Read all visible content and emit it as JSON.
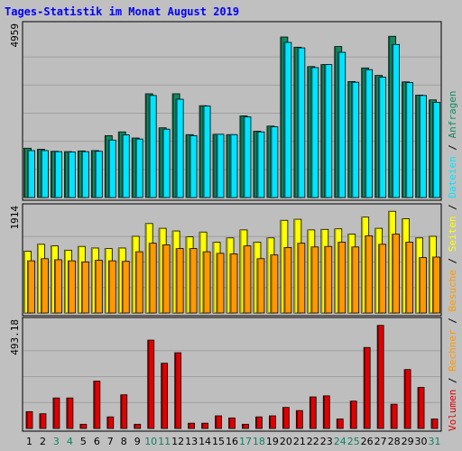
{
  "title": "Tages-Statistik im Monat August 2019",
  "colors": {
    "background": "#c0c0c0",
    "panel": "#bebebe",
    "anfragen": "#138a60",
    "dateien": "#00e5ff",
    "seiten": "#ffff00",
    "besuche": "#ff9900",
    "volumen": "#e00000",
    "title": "#0000ff",
    "weekend_day": "#108060"
  },
  "chart_data": [
    {
      "type": "bar",
      "title": "Tages-Statistik im Monat August 2019",
      "panel": "Anfragen / Dateien",
      "y_scale_label": "4959",
      "ylim": [
        0,
        4959
      ],
      "categories": [
        "1",
        "2",
        "3",
        "4",
        "5",
        "6",
        "7",
        "8",
        "9",
        "10",
        "11",
        "12",
        "13",
        "14",
        "15",
        "16",
        "17",
        "18",
        "19",
        "20",
        "21",
        "22",
        "23",
        "24",
        "25",
        "26",
        "27",
        "28",
        "29",
        "30",
        "31"
      ],
      "weekend_days": [
        "3",
        "4",
        "10",
        "11",
        "17",
        "18",
        "24",
        "25",
        "31"
      ],
      "series": [
        {
          "name": "Anfragen",
          "legend": "Anfragen",
          "color": "#138a60",
          "values": [
            1450,
            1420,
            1360,
            1350,
            1370,
            1380,
            1820,
            1930,
            1750,
            3050,
            2050,
            3050,
            1850,
            2700,
            1860,
            1850,
            2400,
            1950,
            2100,
            4720,
            4420,
            3850,
            3910,
            4440,
            3410,
            3810,
            3590,
            4740,
            3400,
            3010,
            2870
          ]
        },
        {
          "name": "Dateien",
          "legend": "Dateien",
          "color": "#00e5ff",
          "values": [
            1380,
            1380,
            1350,
            1340,
            1350,
            1360,
            1690,
            1840,
            1720,
            3000,
            2010,
            2890,
            1820,
            2690,
            1860,
            1850,
            2370,
            1930,
            2080,
            4560,
            4400,
            3820,
            3910,
            4270,
            3390,
            3760,
            3540,
            4500,
            3380,
            3000,
            2800
          ]
        }
      ]
    },
    {
      "type": "bar",
      "panel": "Seiten / Besuche",
      "y_scale_label": "1914",
      "ylim": [
        0,
        1914
      ],
      "categories": [
        "1",
        "2",
        "3",
        "4",
        "5",
        "6",
        "7",
        "8",
        "9",
        "10",
        "11",
        "12",
        "13",
        "14",
        "15",
        "16",
        "17",
        "18",
        "19",
        "20",
        "21",
        "22",
        "23",
        "24",
        "25",
        "26",
        "27",
        "28",
        "29",
        "30",
        "31"
      ],
      "series": [
        {
          "name": "Seiten",
          "legend": "Seiten",
          "color": "#ffff00",
          "values": [
            1160,
            1290,
            1260,
            1180,
            1250,
            1220,
            1210,
            1220,
            1440,
            1680,
            1590,
            1540,
            1430,
            1520,
            1330,
            1410,
            1560,
            1330,
            1410,
            1740,
            1760,
            1560,
            1570,
            1580,
            1480,
            1800,
            1590,
            1910,
            1770,
            1410,
            1440
          ]
        },
        {
          "name": "Besuche",
          "legend": "Besuche",
          "color": "#ff9900",
          "values": [
            980,
            1020,
            1000,
            980,
            960,
            990,
            980,
            970,
            1150,
            1310,
            1280,
            1210,
            1210,
            1150,
            1120,
            1110,
            1260,
            1020,
            1090,
            1230,
            1310,
            1240,
            1250,
            1330,
            1240,
            1450,
            1290,
            1480,
            1330,
            1040,
            1050
          ]
        }
      ]
    },
    {
      "type": "bar",
      "panel": "Volumen / Rechner",
      "y_scale_label": "493.18",
      "ylim": [
        0,
        493.18
      ],
      "categories": [
        "1",
        "2",
        "3",
        "4",
        "5",
        "6",
        "7",
        "8",
        "9",
        "10",
        "11",
        "12",
        "13",
        "14",
        "15",
        "16",
        "17",
        "18",
        "19",
        "20",
        "21",
        "22",
        "23",
        "24",
        "25",
        "26",
        "27",
        "28",
        "29",
        "30",
        "31"
      ],
      "x_tick_labels": [
        "1",
        "2",
        "3",
        "4",
        "5",
        "6",
        "7",
        "8",
        "9",
        "10",
        "11",
        "12",
        "13",
        "14",
        "15",
        "16",
        "17",
        "18",
        "19",
        "20",
        "21",
        "22",
        "23",
        "24",
        "25",
        "26",
        "27",
        "28",
        "29",
        "30",
        "31"
      ],
      "series": [
        {
          "name": "Volumen",
          "legend": "Volumen",
          "color": "#e00000",
          "values": [
            80,
            70,
            145,
            145,
            20,
            225,
            55,
            160,
            20,
            420,
            310,
            360,
            25,
            25,
            60,
            50,
            20,
            55,
            60,
            100,
            85,
            150,
            155,
            45,
            130,
            385,
            490,
            115,
            280,
            195,
            45
          ]
        }
      ],
      "legend_extra": "Rechner"
    }
  ],
  "legend": {
    "separator": " / ",
    "items": [
      {
        "label": "Volumen",
        "color": "#e00000"
      },
      {
        "label": "Rechner",
        "color": "#ff9900"
      },
      {
        "label": "Besuche",
        "color": "#ff9900"
      },
      {
        "label": "Seiten",
        "color": "#ffff00"
      },
      {
        "label": "Dateien",
        "color": "#00e5ff"
      },
      {
        "label": "Anfragen",
        "color": "#138a60"
      }
    ]
  }
}
